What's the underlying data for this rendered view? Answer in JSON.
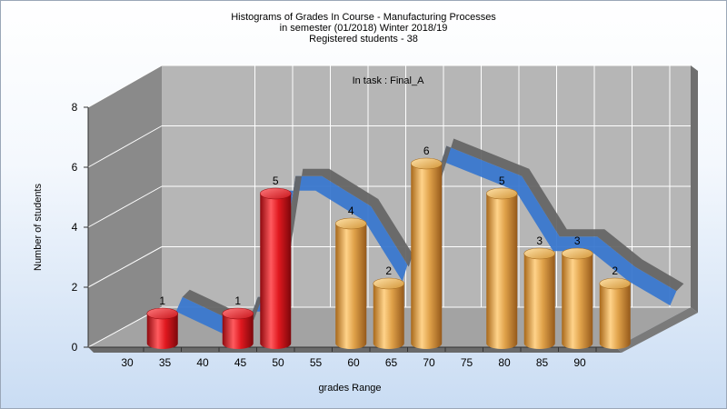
{
  "chart_data": {
    "type": "bar",
    "title_lines": [
      "Histograms of Grades  In Course - Manufacturing Processes",
      "in semester  (01/2018) Winter 2018/19",
      "Registered students - 38"
    ],
    "annotation": "In task : Final_A",
    "xlabel": "grades Range",
    "ylabel": "Number of students",
    "ylim": [
      0,
      8
    ],
    "yticks": [
      "0",
      "2",
      "4",
      "6",
      "8"
    ],
    "xticks": [
      "30",
      "35",
      "40",
      "45",
      "50",
      "55",
      "60",
      "65",
      "70",
      "75",
      "80",
      "85",
      "90"
    ],
    "series": [
      {
        "values": [
          1,
          1,
          5,
          4,
          2,
          6,
          5,
          3,
          3,
          2
        ],
        "positions": [
          32.5,
          42.5,
          47.5,
          57.5,
          62.5,
          67.5,
          77.5,
          82.5,
          87.5,
          92.5
        ],
        "labels": [
          "1",
          "1",
          "5",
          "4",
          "2",
          "6",
          "5",
          "3",
          "3",
          "2"
        ],
        "colors": [
          "#d8141c",
          "#d8141c",
          "#d8141c",
          "#d49a3a",
          "#d49a3a",
          "#d49a3a",
          "#d49a3a",
          "#d49a3a",
          "#d49a3a",
          "#d49a3a"
        ]
      }
    ],
    "curve_color": "#3a78cf",
    "grid": true,
    "colors": {
      "red_bar": "#d8141c",
      "orange_bar": "#d49a3a",
      "curve": "#3a78cf",
      "back_wall": "#b6b6b6",
      "side_wall": "#8a8a8a"
    }
  }
}
